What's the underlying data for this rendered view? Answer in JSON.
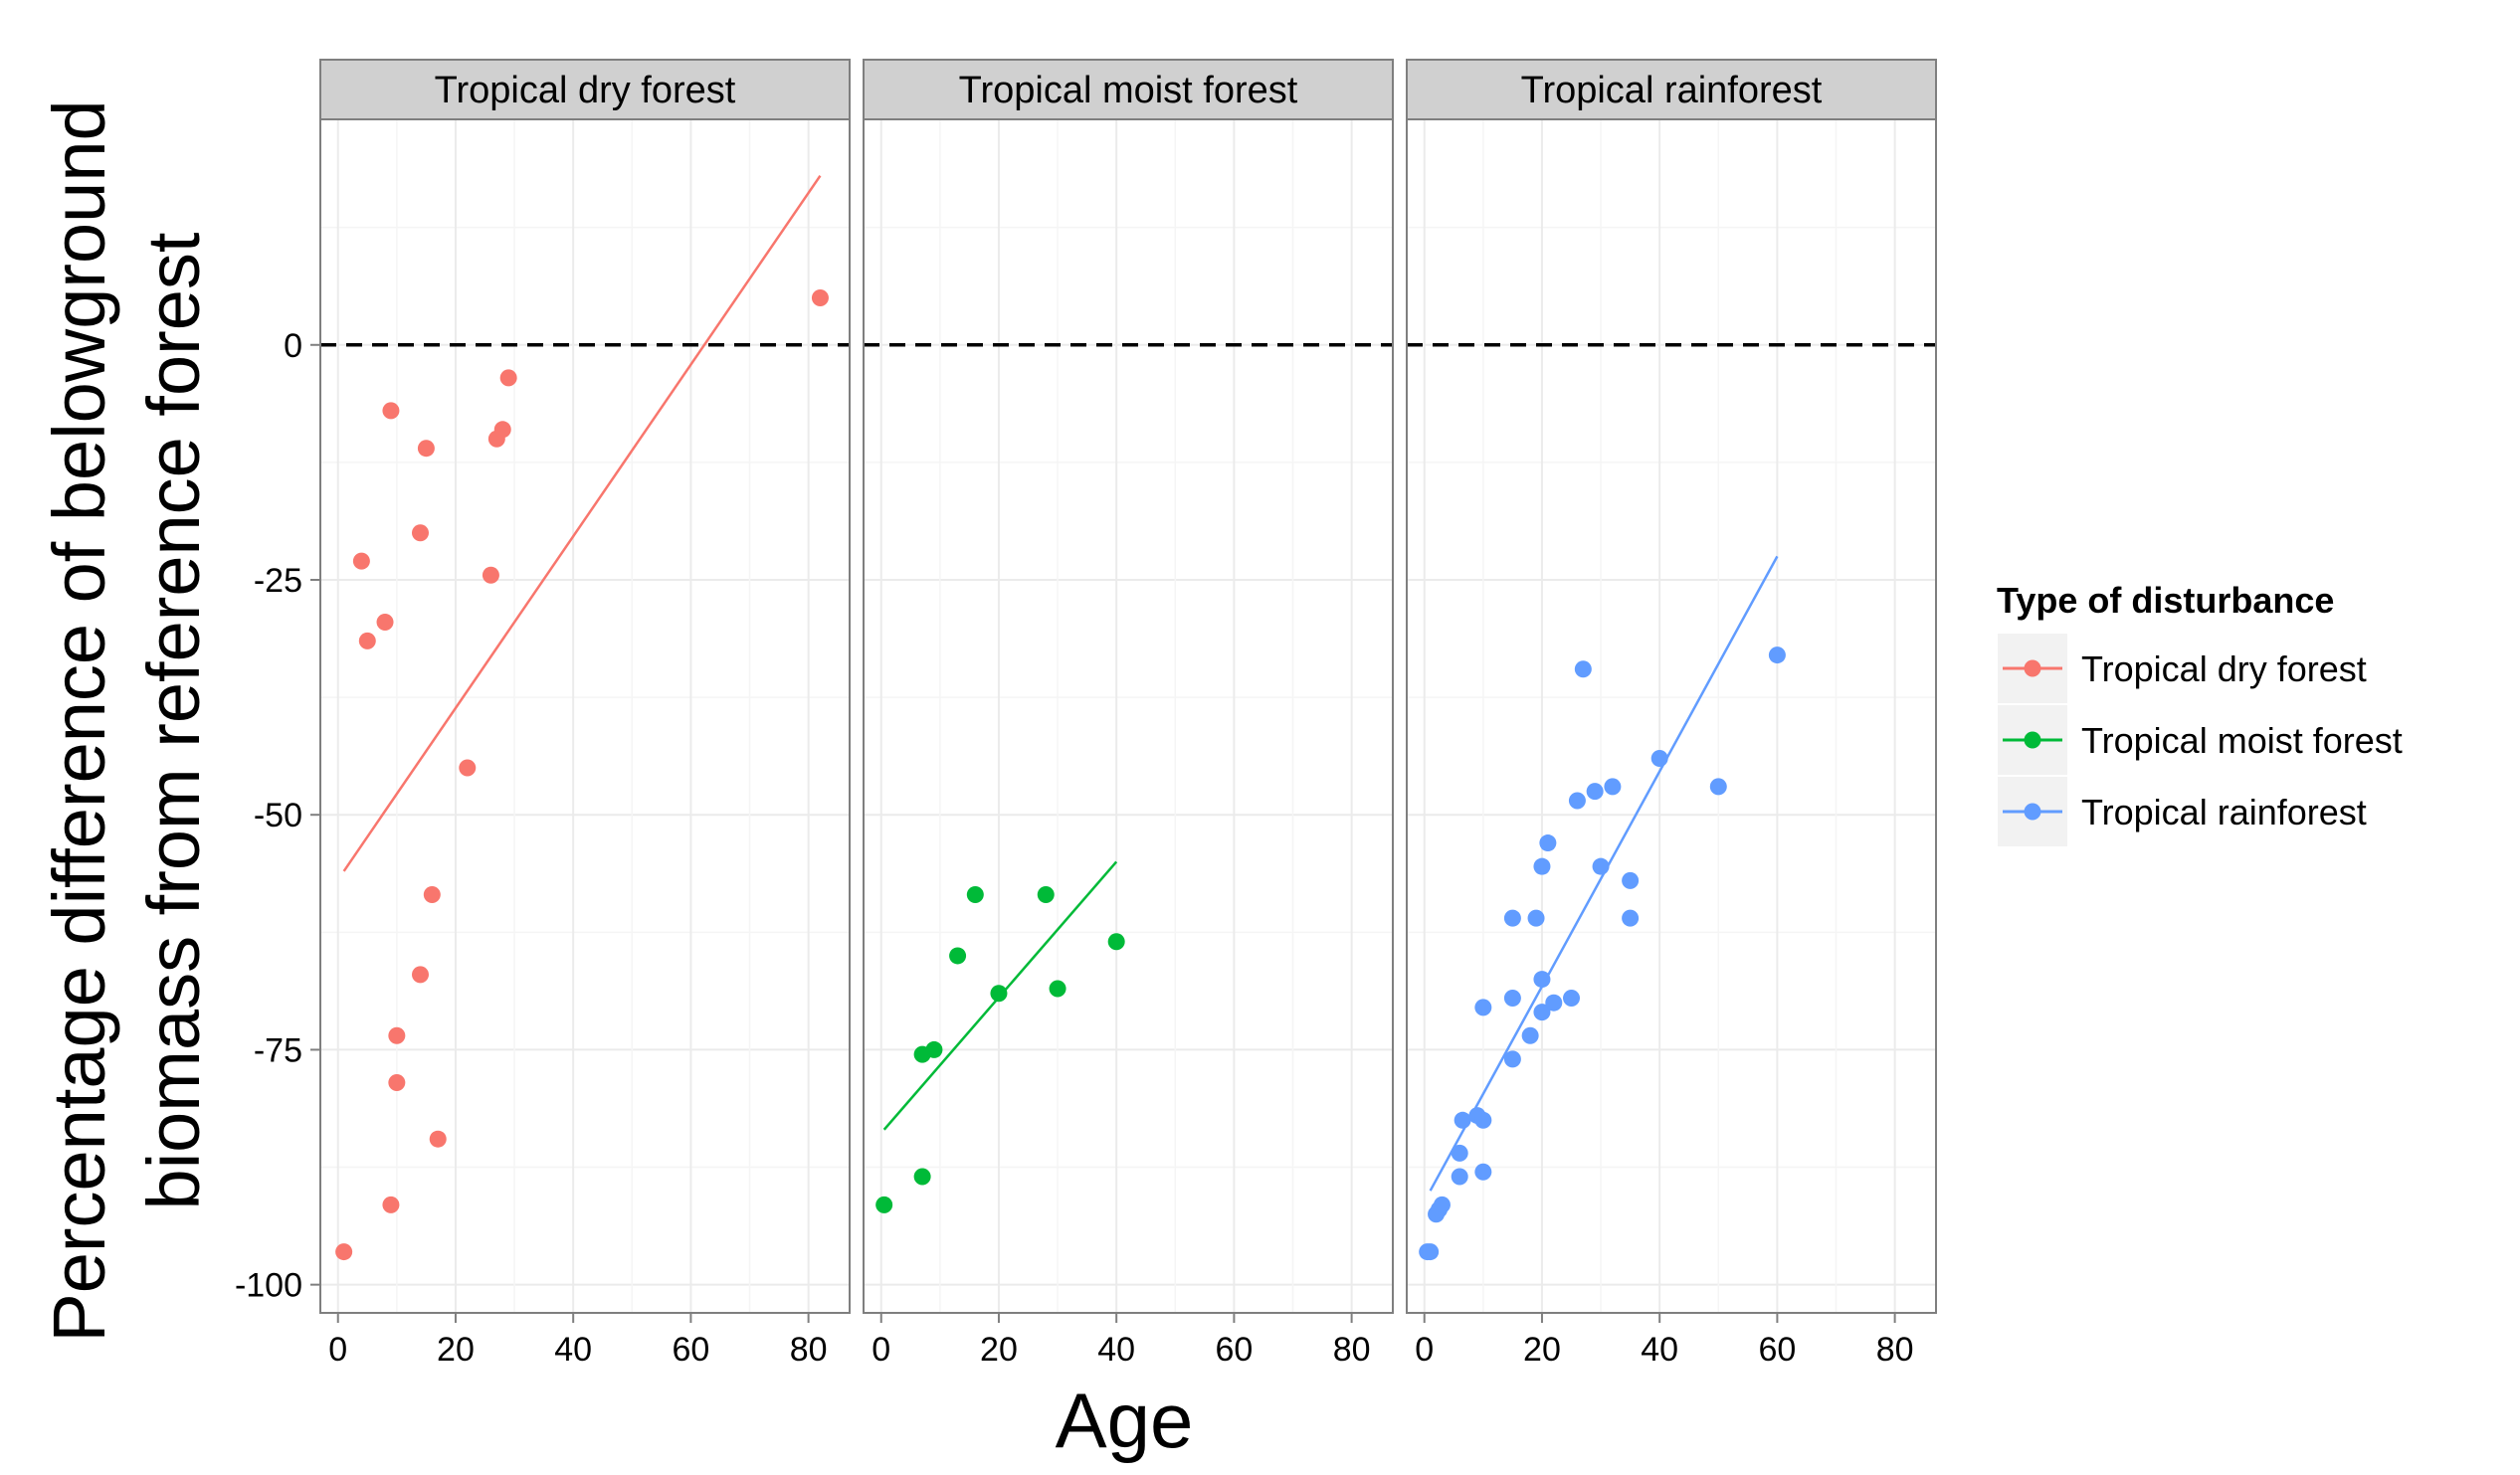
{
  "chart_data": {
    "type": "scatter",
    "xlabel": "Age",
    "ylabel_lines": [
      "Percentage difference of belowground",
      "biomass from reference forest"
    ],
    "xlim": [
      -3,
      87
    ],
    "ylim": [
      -103,
      24
    ],
    "xticks": [
      0,
      20,
      40,
      60,
      80
    ],
    "yticks": [
      -100,
      -75,
      -50,
      -25,
      0
    ],
    "reference_line_y": 0,
    "legend": {
      "title": "Type of disturbance",
      "position": "right"
    },
    "series": [
      {
        "name": "Tropical dry forest",
        "color": "#F8766D",
        "points": [
          [
            1,
            -96.5
          ],
          [
            4,
            -23
          ],
          [
            5,
            -31.5
          ],
          [
            8,
            -29.5
          ],
          [
            9,
            -7
          ],
          [
            9,
            -91.5
          ],
          [
            10,
            -73.5
          ],
          [
            10,
            -78.5
          ],
          [
            14,
            -20
          ],
          [
            14,
            -67
          ],
          [
            15,
            -11
          ],
          [
            16,
            -58.5
          ],
          [
            17,
            -84.5
          ],
          [
            22,
            -45
          ],
          [
            26,
            -24.5
          ],
          [
            27,
            -10
          ],
          [
            28,
            -9
          ],
          [
            29,
            -3.5
          ],
          [
            82,
            5
          ]
        ],
        "trend": [
          [
            1,
            -56
          ],
          [
            82,
            18
          ]
        ]
      },
      {
        "name": "Tropical moist forest",
        "color": "#00BA38",
        "points": [
          [
            0.5,
            -91.5
          ],
          [
            7,
            -75.5
          ],
          [
            7,
            -88.5
          ],
          [
            9,
            -75
          ],
          [
            13,
            -65
          ],
          [
            16,
            -58.5
          ],
          [
            20,
            -69
          ],
          [
            28,
            -58.5
          ],
          [
            30,
            -68.5
          ],
          [
            40,
            -63.5
          ]
        ],
        "trend": [
          [
            0.5,
            -83.5
          ],
          [
            40,
            -55
          ]
        ]
      },
      {
        "name": "Tropical rainforest",
        "color": "#619CFF",
        "points": [
          [
            0.5,
            -96.5
          ],
          [
            1,
            -96.5
          ],
          [
            2,
            -92.5
          ],
          [
            2.5,
            -92
          ],
          [
            3,
            -91.5
          ],
          [
            6,
            -86
          ],
          [
            6,
            -88.5
          ],
          [
            6.5,
            -82.5
          ],
          [
            9,
            -82
          ],
          [
            10,
            -82.5
          ],
          [
            10,
            -88
          ],
          [
            10,
            -70.5
          ],
          [
            15,
            -61
          ],
          [
            15,
            -69.5
          ],
          [
            15,
            -76
          ],
          [
            18,
            -73.5
          ],
          [
            19,
            -61
          ],
          [
            20,
            -55.5
          ],
          [
            20,
            -67.5
          ],
          [
            20,
            -71
          ],
          [
            21,
            -53
          ],
          [
            22,
            -70
          ],
          [
            25,
            -69.5
          ],
          [
            26,
            -48.5
          ],
          [
            27,
            -34.5
          ],
          [
            29,
            -47.5
          ],
          [
            30,
            -55.5
          ],
          [
            32,
            -47
          ],
          [
            35,
            -57
          ],
          [
            35,
            -61
          ],
          [
            40,
            -44
          ],
          [
            50,
            -47
          ],
          [
            60,
            -33
          ]
        ],
        "trend": [
          [
            1,
            -90
          ],
          [
            60,
            -22.5
          ]
        ]
      }
    ],
    "panels": [
      {
        "title": "Tropical dry forest",
        "series_index": 0
      },
      {
        "title": "Tropical moist forest",
        "series_index": 1
      },
      {
        "title": "Tropical rainforest",
        "series_index": 2
      }
    ]
  }
}
